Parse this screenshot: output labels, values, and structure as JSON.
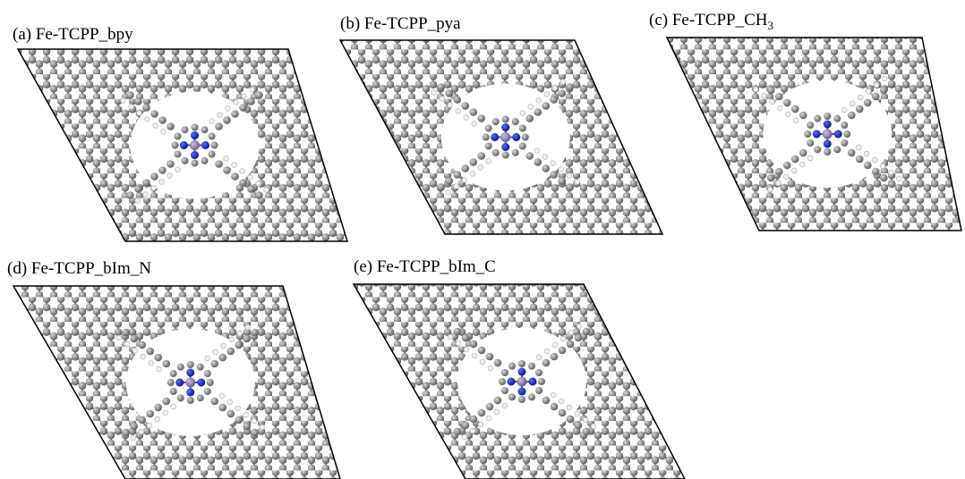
{
  "panels": [
    {
      "label": "(a) Fe-TCPP_bpy"
    },
    {
      "label": "(b) Fe-TCPP_pya"
    },
    {
      "label": "(c) Fe-TCPP_CH",
      "label_sub": "3"
    },
    {
      "label": "(d) Fe-TCPP_bIm_N"
    },
    {
      "label": "(e) Fe-TCPP_bIm_C"
    }
  ]
}
